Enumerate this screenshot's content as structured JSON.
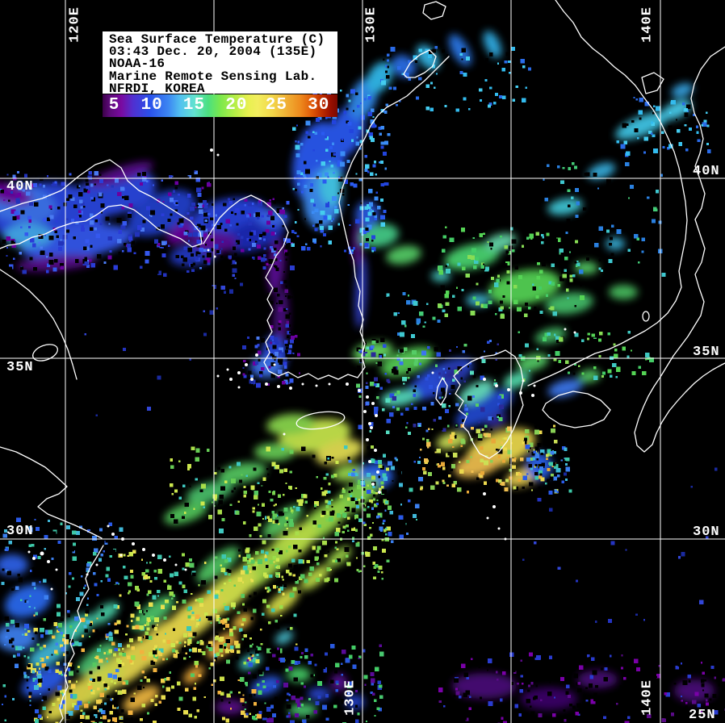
{
  "title_box": {
    "lines": [
      "Sea Surface Temperature (C)",
      "03:43 Dec. 20, 2004 (135E)",
      "NOAA-16",
      "Marine Remote Sensing Lab.",
      "NFRDI, KOREA"
    ]
  },
  "colorbar": {
    "ticks": [
      "5",
      "10",
      "15",
      "20",
      "25",
      "30"
    ],
    "gradient": [
      "#3a0048 0%",
      "#5c0a78 3%",
      "#7a0aa0 8%",
      "#5030d0 13%",
      "#2a50ea 20%",
      "#3c86f2 28%",
      "#52c0f0 33%",
      "#62e2d0 39%",
      "#4ce080 45%",
      "#7ae84e 50%",
      "#b2ee46 56%",
      "#e8f050 62%",
      "#f2ee5e 66%",
      "#f2d84a 72%",
      "#f0b236 78%",
      "#ee8c1e 84%",
      "#e05a08 89%",
      "#c03000 93%",
      "#9a1000 97%",
      "#7a0a00 100%"
    ]
  },
  "grid_labels": {
    "top_120e": "120E",
    "top_130e": "130E",
    "top_140e": "140E",
    "bottom_130e": "130E",
    "bottom_140e": "140E",
    "left_40n": "40N",
    "left_35n": "35N",
    "left_30n": "30N",
    "right_40n": "40N",
    "right_35n": "35N",
    "right_30n": "30N",
    "right_25n": "25N"
  },
  "colors": {
    "background": "#000000",
    "coastline": "#ffffff",
    "grid_line": "#ffffff",
    "label_text": "#ffffff",
    "title_bg": "#ffffff",
    "title_text": "#000000"
  }
}
